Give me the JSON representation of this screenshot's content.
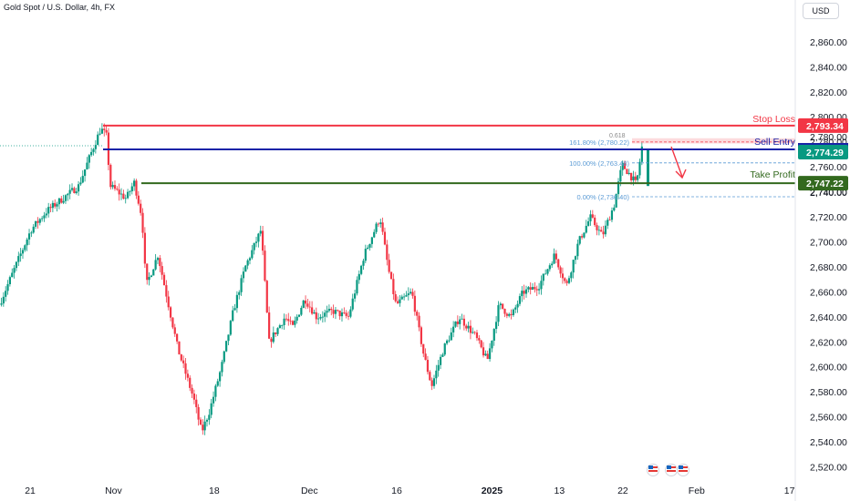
{
  "header": {
    "symbol_title": "Gold Spot / U.S. Dollar, 4h, FX",
    "currency_label": "USD"
  },
  "chart_data": {
    "type": "candlestick",
    "title": "Gold Spot / U.S. Dollar, 4h, FX",
    "ylim": [
      2512,
      2882
    ],
    "y_ticks": [
      "2,520.00",
      "2,540.00",
      "2,560.00",
      "2,580.00",
      "2,600.00",
      "2,620.00",
      "2,640.00",
      "2,660.00",
      "2,680.00",
      "2,700.00",
      "2,720.00",
      "2,740.00",
      "2,760.00",
      "2,780.00",
      "2,800.00",
      "2,820.00",
      "2,840.00",
      "2,860.00"
    ],
    "y_tick_values": [
      2520,
      2540,
      2560,
      2580,
      2600,
      2620,
      2640,
      2660,
      2680,
      2700,
      2720,
      2740,
      2760,
      2780,
      2800,
      2820,
      2840,
      2860
    ],
    "x_ticks": [
      "21",
      "Nov",
      "18",
      "Dec",
      "16",
      "2025",
      "13",
      "22",
      "Feb",
      "17"
    ],
    "x_tick_fractions": [
      0.038,
      0.143,
      0.27,
      0.39,
      0.5,
      0.62,
      0.705,
      0.785,
      0.878,
      0.995
    ],
    "price_path": [
      [
        0.0,
        2650
      ],
      [
        0.02,
        2680
      ],
      [
        0.04,
        2710
      ],
      [
        0.06,
        2725
      ],
      [
        0.08,
        2735
      ],
      [
        0.1,
        2745
      ],
      [
        0.115,
        2770
      ],
      [
        0.128,
        2791
      ],
      [
        0.135,
        2785
      ],
      [
        0.14,
        2745
      ],
      [
        0.15,
        2740
      ],
      [
        0.16,
        2735
      ],
      [
        0.17,
        2748
      ],
      [
        0.18,
        2720
      ],
      [
        0.185,
        2665
      ],
      [
        0.2,
        2690
      ],
      [
        0.21,
        2660
      ],
      [
        0.225,
        2615
      ],
      [
        0.235,
        2595
      ],
      [
        0.245,
        2575
      ],
      [
        0.255,
        2548
      ],
      [
        0.265,
        2565
      ],
      [
        0.28,
        2600
      ],
      [
        0.295,
        2645
      ],
      [
        0.31,
        2680
      ],
      [
        0.33,
        2710
      ],
      [
        0.34,
        2620
      ],
      [
        0.36,
        2640
      ],
      [
        0.37,
        2632
      ],
      [
        0.385,
        2655
      ],
      [
        0.4,
        2640
      ],
      [
        0.42,
        2645
      ],
      [
        0.44,
        2640
      ],
      [
        0.46,
        2690
      ],
      [
        0.48,
        2720
      ],
      [
        0.49,
        2680
      ],
      [
        0.5,
        2650
      ],
      [
        0.52,
        2660
      ],
      [
        0.535,
        2610
      ],
      [
        0.545,
        2585
      ],
      [
        0.56,
        2615
      ],
      [
        0.58,
        2640
      ],
      [
        0.6,
        2625
      ],
      [
        0.615,
        2605
      ],
      [
        0.63,
        2650
      ],
      [
        0.645,
        2640
      ],
      [
        0.66,
        2660
      ],
      [
        0.68,
        2665
      ],
      [
        0.7,
        2690
      ],
      [
        0.715,
        2665
      ],
      [
        0.73,
        2700
      ],
      [
        0.745,
        2720
      ],
      [
        0.76,
        2705
      ],
      [
        0.775,
        2730
      ],
      [
        0.785,
        2762
      ],
      [
        0.795,
        2754
      ],
      [
        0.803,
        2746
      ],
      [
        0.81,
        2776
      ]
    ],
    "annotations": {
      "stop_loss": {
        "label": "Stop Loss",
        "price": 2793.34,
        "price_label": "2,793.34",
        "color": "#f23645"
      },
      "sell_entry": {
        "label": "Sell Entry",
        "price": 2774.29,
        "price_label": "2,774.29",
        "color": "#1723a8"
      },
      "take_profit": {
        "label": "Take Profit",
        "price": 2747.22,
        "price_label": "2,747.22",
        "color": "#33691e"
      },
      "current_price_color": "#089981",
      "fib_levels": [
        {
          "label": "161.80% (2,780.22)",
          "price": 2780.22
        },
        {
          "label": "100.00% (2,763.48)",
          "price": 2763.48
        },
        {
          "label": "0.00% (2,736.40)",
          "price": 2736.4
        }
      ],
      "fib_small_label": "0.618",
      "partial_tick_label": "2,780.00",
      "hidden_tick_label": "2,740.00"
    },
    "colors": {
      "up": "#089981",
      "down": "#f23645",
      "grid": "#f0f3fa",
      "axis_text": "#131722"
    },
    "grid": false,
    "events": [
      "us-flag-icon",
      "us-flag-icon",
      "us-flag-icon"
    ]
  }
}
